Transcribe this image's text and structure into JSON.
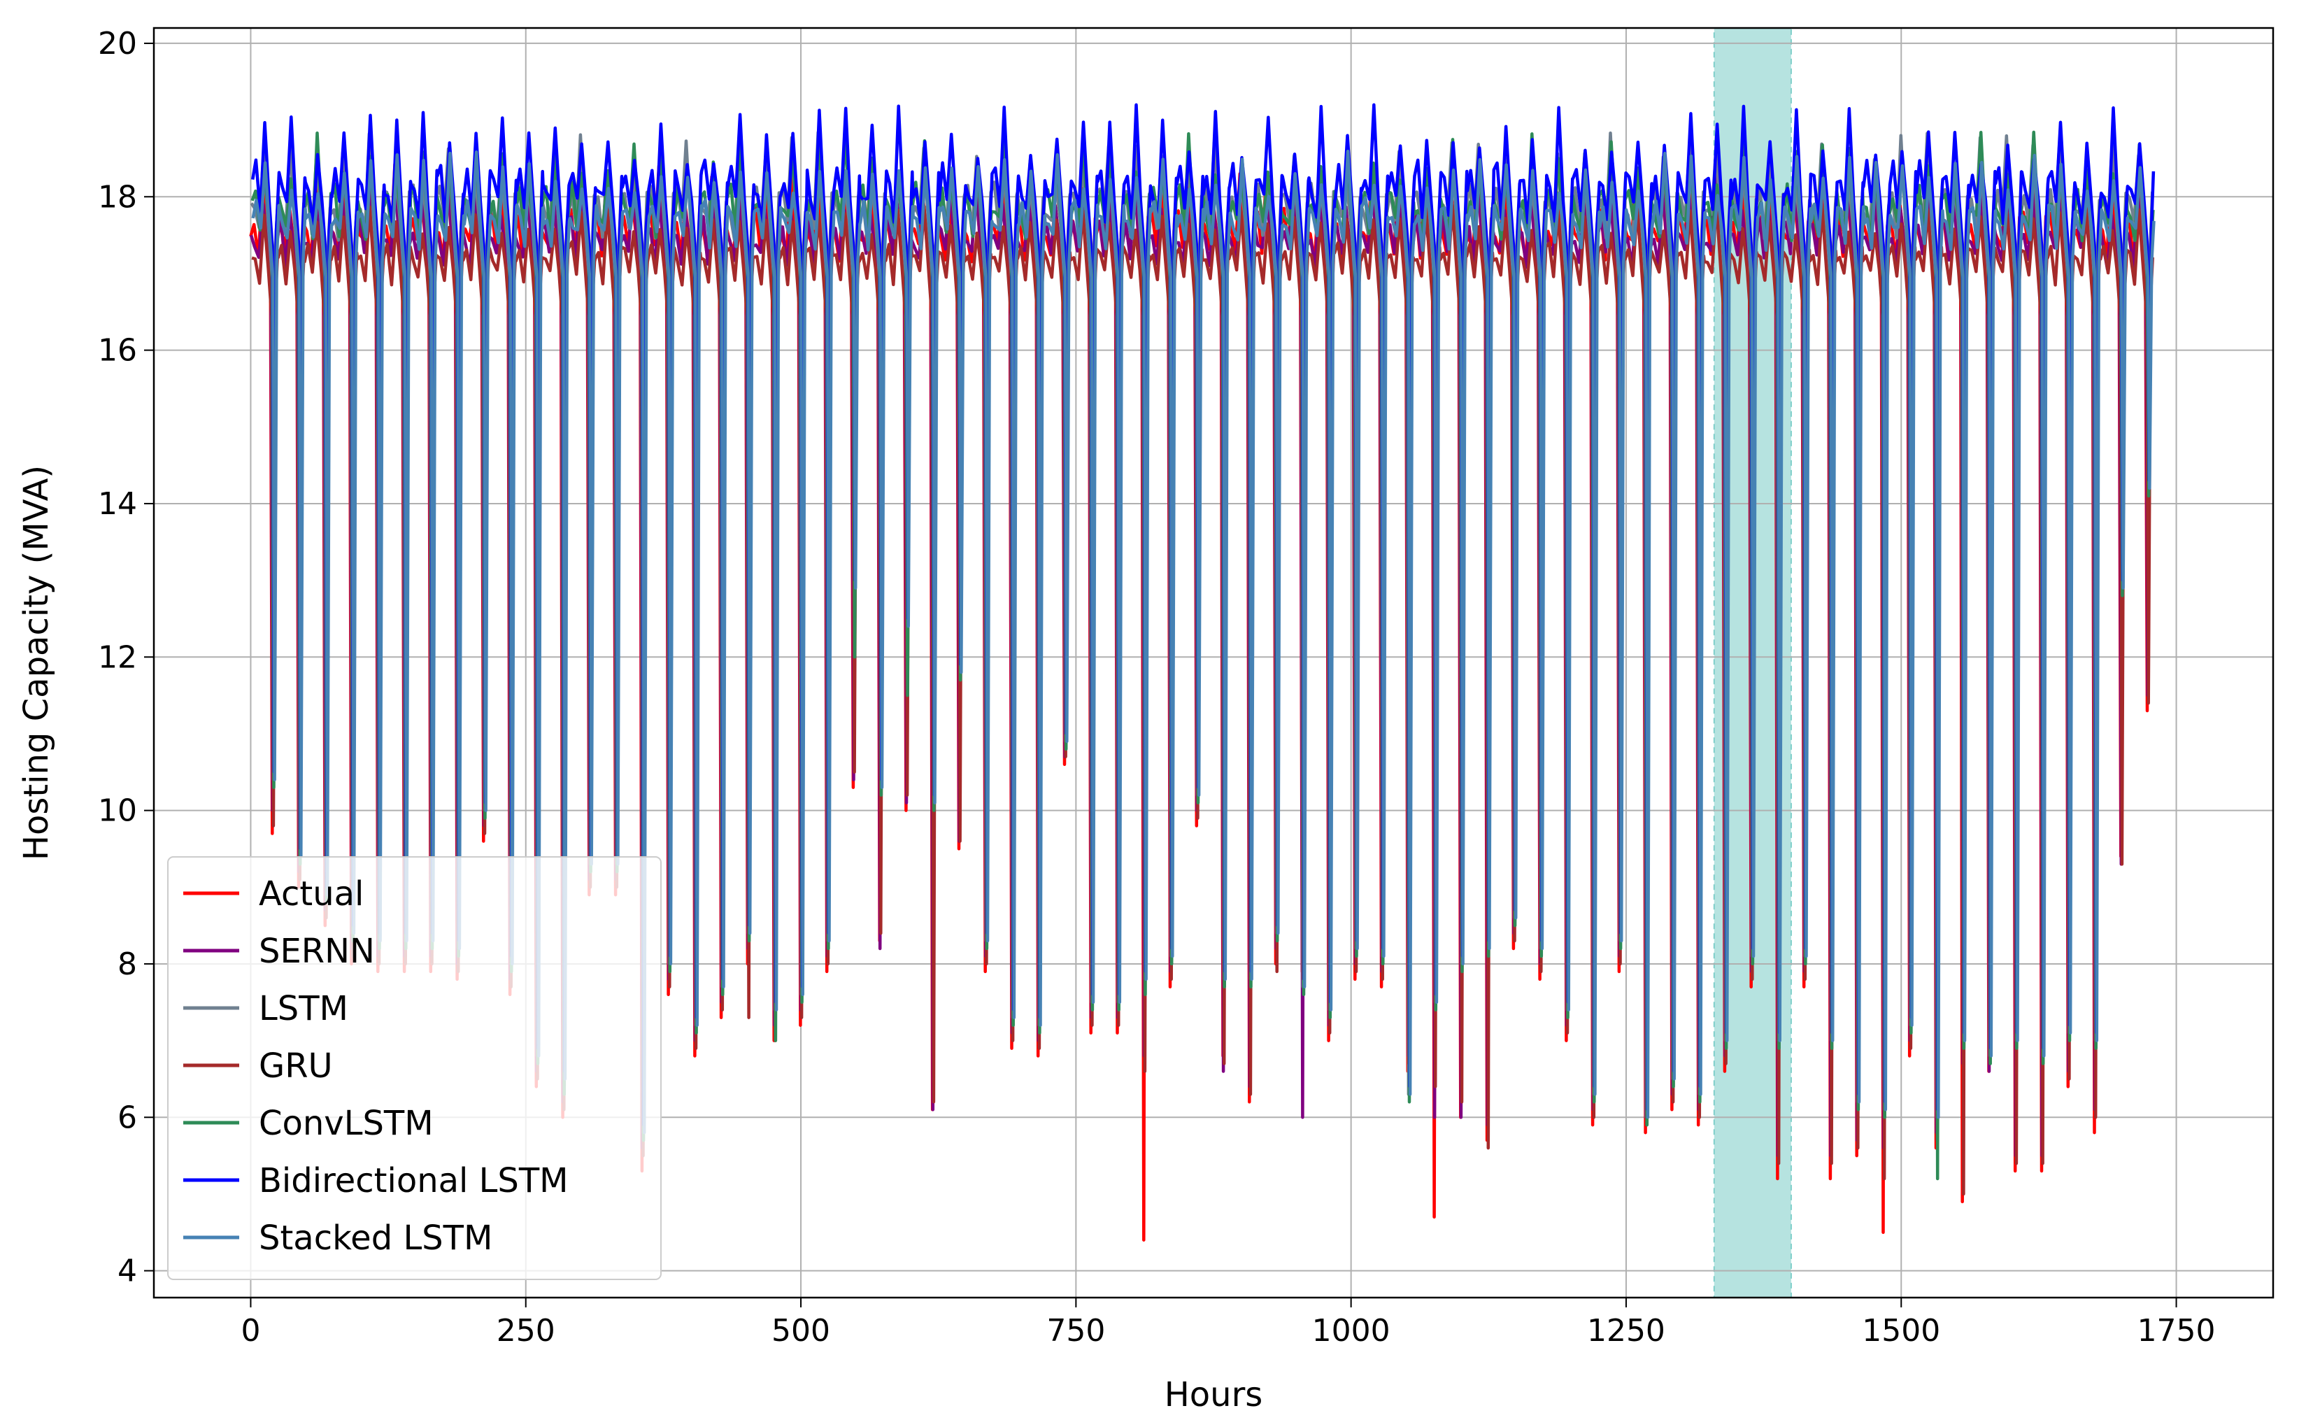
{
  "chart_data": {
    "type": "line",
    "xlabel": "Hours",
    "ylabel": "Hosting Capacity (MVA)",
    "xlim": [
      -88,
      1838
    ],
    "ylim": [
      3.65,
      20.2
    ],
    "xticks": [
      0,
      250,
      500,
      750,
      1000,
      1250,
      1500,
      1750
    ],
    "yticks": [
      4,
      6,
      8,
      10,
      12,
      14,
      16,
      18,
      20
    ],
    "grid": true,
    "legend_position": "lower-left",
    "highlight_band": {
      "x_start": 1330,
      "x_end": 1400,
      "color": "#b6e3e0"
    },
    "period_hours": 24,
    "num_cycles": 72,
    "series": [
      {
        "name": "Actual",
        "color": "#ff0000",
        "peak": 17.6,
        "peak_jitter": 0.3,
        "troughs": [
          9.7,
          9.0,
          8.5,
          8.0,
          7.9,
          7.9,
          7.9,
          7.8,
          9.6,
          7.6,
          6.4,
          6.0,
          8.9,
          8.9,
          5.3,
          7.6,
          6.8,
          7.3,
          8.0,
          7.0,
          7.2,
          7.9,
          10.3,
          8.3,
          10.0,
          6.1,
          9.5,
          7.9,
          6.9,
          6.8,
          10.6,
          7.1,
          7.1,
          4.4,
          7.7,
          9.8,
          6.8,
          6.2,
          8.0,
          7.9,
          7.0,
          7.8,
          7.7,
          6.6,
          4.7,
          6.0,
          5.7,
          8.2,
          7.8,
          7.0,
          5.9,
          7.9,
          5.8,
          6.1,
          5.9,
          6.6,
          7.7,
          5.2,
          7.7,
          5.2,
          5.5,
          4.5,
          6.8,
          5.6,
          4.9,
          6.6,
          5.3,
          5.3,
          6.4,
          5.8,
          9.4,
          11.3
        ]
      },
      {
        "name": "SERNN",
        "color": "#800080",
        "peak": 17.5,
        "peak_jitter": 0.3,
        "troughs": [
          10.0,
          9.2,
          8.7,
          8.2,
          8.1,
          8.1,
          8.1,
          8.0,
          9.8,
          7.8,
          6.6,
          6.2,
          9.1,
          9.1,
          5.6,
          7.8,
          7.0,
          7.5,
          8.2,
          7.2,
          7.4,
          8.1,
          10.4,
          8.2,
          10.1,
          6.1,
          9.6,
          8.1,
          7.1,
          7.0,
          10.7,
          7.3,
          7.3,
          6.8,
          7.9,
          10.0,
          6.6,
          6.4,
          8.2,
          6.0,
          7.2,
          8.0,
          7.9,
          6.8,
          6.0,
          6.0,
          5.9,
          8.4,
          8.0,
          7.2,
          6.1,
          8.1,
          6.0,
          6.3,
          6.1,
          6.8,
          7.9,
          5.5,
          7.9,
          5.5,
          5.7,
          5.6,
          7.0,
          5.8,
          6.7,
          6.6,
          5.5,
          5.5,
          6.6,
          6.1,
          9.3,
          11.5
        ]
      },
      {
        "name": "LSTM",
        "color": "#708090",
        "peak": 17.9,
        "peak_jitter": 0.35,
        "troughs": [
          10.4,
          9.4,
          8.9,
          8.4,
          8.3,
          8.3,
          8.3,
          8.2,
          10.0,
          8.0,
          6.8,
          6.5,
          9.3,
          9.3,
          5.8,
          8.0,
          7.2,
          7.7,
          8.4,
          7.4,
          7.6,
          8.3,
          12.9,
          10.3,
          12.4,
          10.1,
          11.8,
          8.3,
          7.3,
          7.2,
          10.9,
          7.5,
          7.5,
          7.8,
          8.1,
          10.2,
          7.8,
          7.8,
          8.4,
          7.7,
          7.4,
          8.2,
          8.1,
          6.3,
          7.5,
          8.0,
          8.2,
          8.6,
          8.2,
          7.4,
          6.3,
          8.3,
          6.0,
          6.5,
          6.3,
          7.0,
          8.1,
          7.0,
          8.1,
          7.0,
          6.2,
          6.1,
          7.2,
          6.0,
          7.0,
          6.8,
          7.0,
          6.8,
          7.1,
          7.0,
          12.9,
          14.2
        ]
      },
      {
        "name": "GRU",
        "color": "#a52a2a",
        "peak": 17.25,
        "peak_jitter": 0.2,
        "troughs": [
          9.8,
          9.1,
          8.6,
          8.1,
          8.0,
          8.0,
          8.0,
          7.9,
          9.7,
          7.7,
          6.5,
          6.1,
          9.0,
          9.0,
          5.5,
          7.7,
          6.9,
          7.4,
          7.3,
          7.0,
          7.3,
          8.0,
          10.5,
          8.4,
          10.2,
          6.2,
          9.6,
          8.0,
          7.0,
          6.9,
          10.7,
          7.2,
          7.2,
          6.6,
          7.8,
          9.9,
          6.7,
          6.3,
          7.9,
          7.8,
          7.1,
          7.9,
          7.8,
          6.7,
          6.4,
          6.2,
          5.6,
          8.3,
          7.9,
          7.1,
          6.0,
          8.0,
          5.9,
          6.2,
          6.0,
          6.7,
          7.8,
          5.4,
          7.8,
          5.4,
          5.6,
          5.2,
          6.9,
          5.7,
          5.0,
          6.7,
          5.4,
          5.4,
          6.5,
          6.0,
          9.3,
          11.4
        ]
      },
      {
        "name": "ConvLSTM",
        "color": "#2e8b57",
        "peak": 17.9,
        "peak_jitter": 0.35,
        "troughs": [
          10.3,
          9.3,
          8.8,
          8.3,
          8.2,
          8.2,
          8.2,
          8.1,
          9.9,
          7.9,
          6.7,
          6.3,
          9.2,
          9.2,
          5.7,
          7.9,
          7.1,
          7.6,
          8.3,
          7.0,
          7.5,
          8.2,
          12.0,
          10.2,
          11.5,
          10.0,
          11.7,
          8.2,
          7.2,
          7.1,
          10.8,
          7.4,
          7.4,
          7.6,
          8.0,
          10.1,
          7.7,
          7.7,
          8.3,
          7.6,
          7.3,
          8.1,
          8.0,
          6.2,
          7.4,
          7.9,
          8.1,
          8.5,
          8.1,
          7.3,
          6.2,
          8.2,
          5.9,
          6.4,
          6.2,
          6.9,
          8.0,
          6.9,
          8.0,
          6.9,
          6.1,
          6.0,
          7.1,
          5.2,
          6.9,
          6.7,
          6.9,
          6.7,
          7.0,
          6.9,
          12.8,
          14.1
        ]
      },
      {
        "name": "Bidirectional LSTM",
        "color": "#0000ff",
        "peak": 18.15,
        "peak_jitter": 0.4,
        "troughs": [
          10.5,
          9.5,
          9.0,
          8.5,
          8.4,
          8.4,
          8.4,
          8.3,
          10.1,
          8.1,
          6.9,
          6.6,
          9.4,
          9.4,
          5.9,
          8.1,
          7.3,
          7.8,
          8.5,
          7.5,
          7.7,
          8.4,
          13.0,
          10.4,
          12.5,
          10.2,
          11.9,
          8.4,
          7.4,
          7.3,
          11.0,
          7.6,
          7.6,
          7.9,
          8.2,
          10.3,
          7.9,
          7.9,
          8.5,
          7.8,
          7.5,
          8.3,
          8.2,
          6.4,
          7.6,
          8.1,
          8.3,
          8.7,
          8.3,
          7.5,
          6.4,
          8.4,
          6.1,
          6.6,
          6.4,
          7.1,
          8.2,
          7.1,
          8.2,
          7.1,
          6.3,
          6.2,
          7.3,
          6.1,
          7.1,
          6.9,
          7.1,
          6.9,
          7.2,
          7.1,
          13.0,
          14.3
        ]
      },
      {
        "name": "Stacked LSTM",
        "color": "#4682b4",
        "peak": 17.75,
        "peak_jitter": 0.3,
        "troughs": [
          10.4,
          9.4,
          8.9,
          8.4,
          8.3,
          8.3,
          8.3,
          8.2,
          10.0,
          8.0,
          6.8,
          6.5,
          9.3,
          9.3,
          5.8,
          8.0,
          7.2,
          7.7,
          8.4,
          7.4,
          7.6,
          8.3,
          12.9,
          10.3,
          12.4,
          10.1,
          11.8,
          8.3,
          7.3,
          7.2,
          10.9,
          7.5,
          7.5,
          7.8,
          8.1,
          10.2,
          7.8,
          7.8,
          8.4,
          7.7,
          7.4,
          8.2,
          8.1,
          6.3,
          7.5,
          8.0,
          8.2,
          8.6,
          8.2,
          7.4,
          6.3,
          8.3,
          6.0,
          6.5,
          6.3,
          7.0,
          8.1,
          7.0,
          8.1,
          7.0,
          6.2,
          6.1,
          7.2,
          6.0,
          7.0,
          6.8,
          7.0,
          6.8,
          7.1,
          7.0,
          12.9,
          14.2
        ]
      }
    ]
  }
}
